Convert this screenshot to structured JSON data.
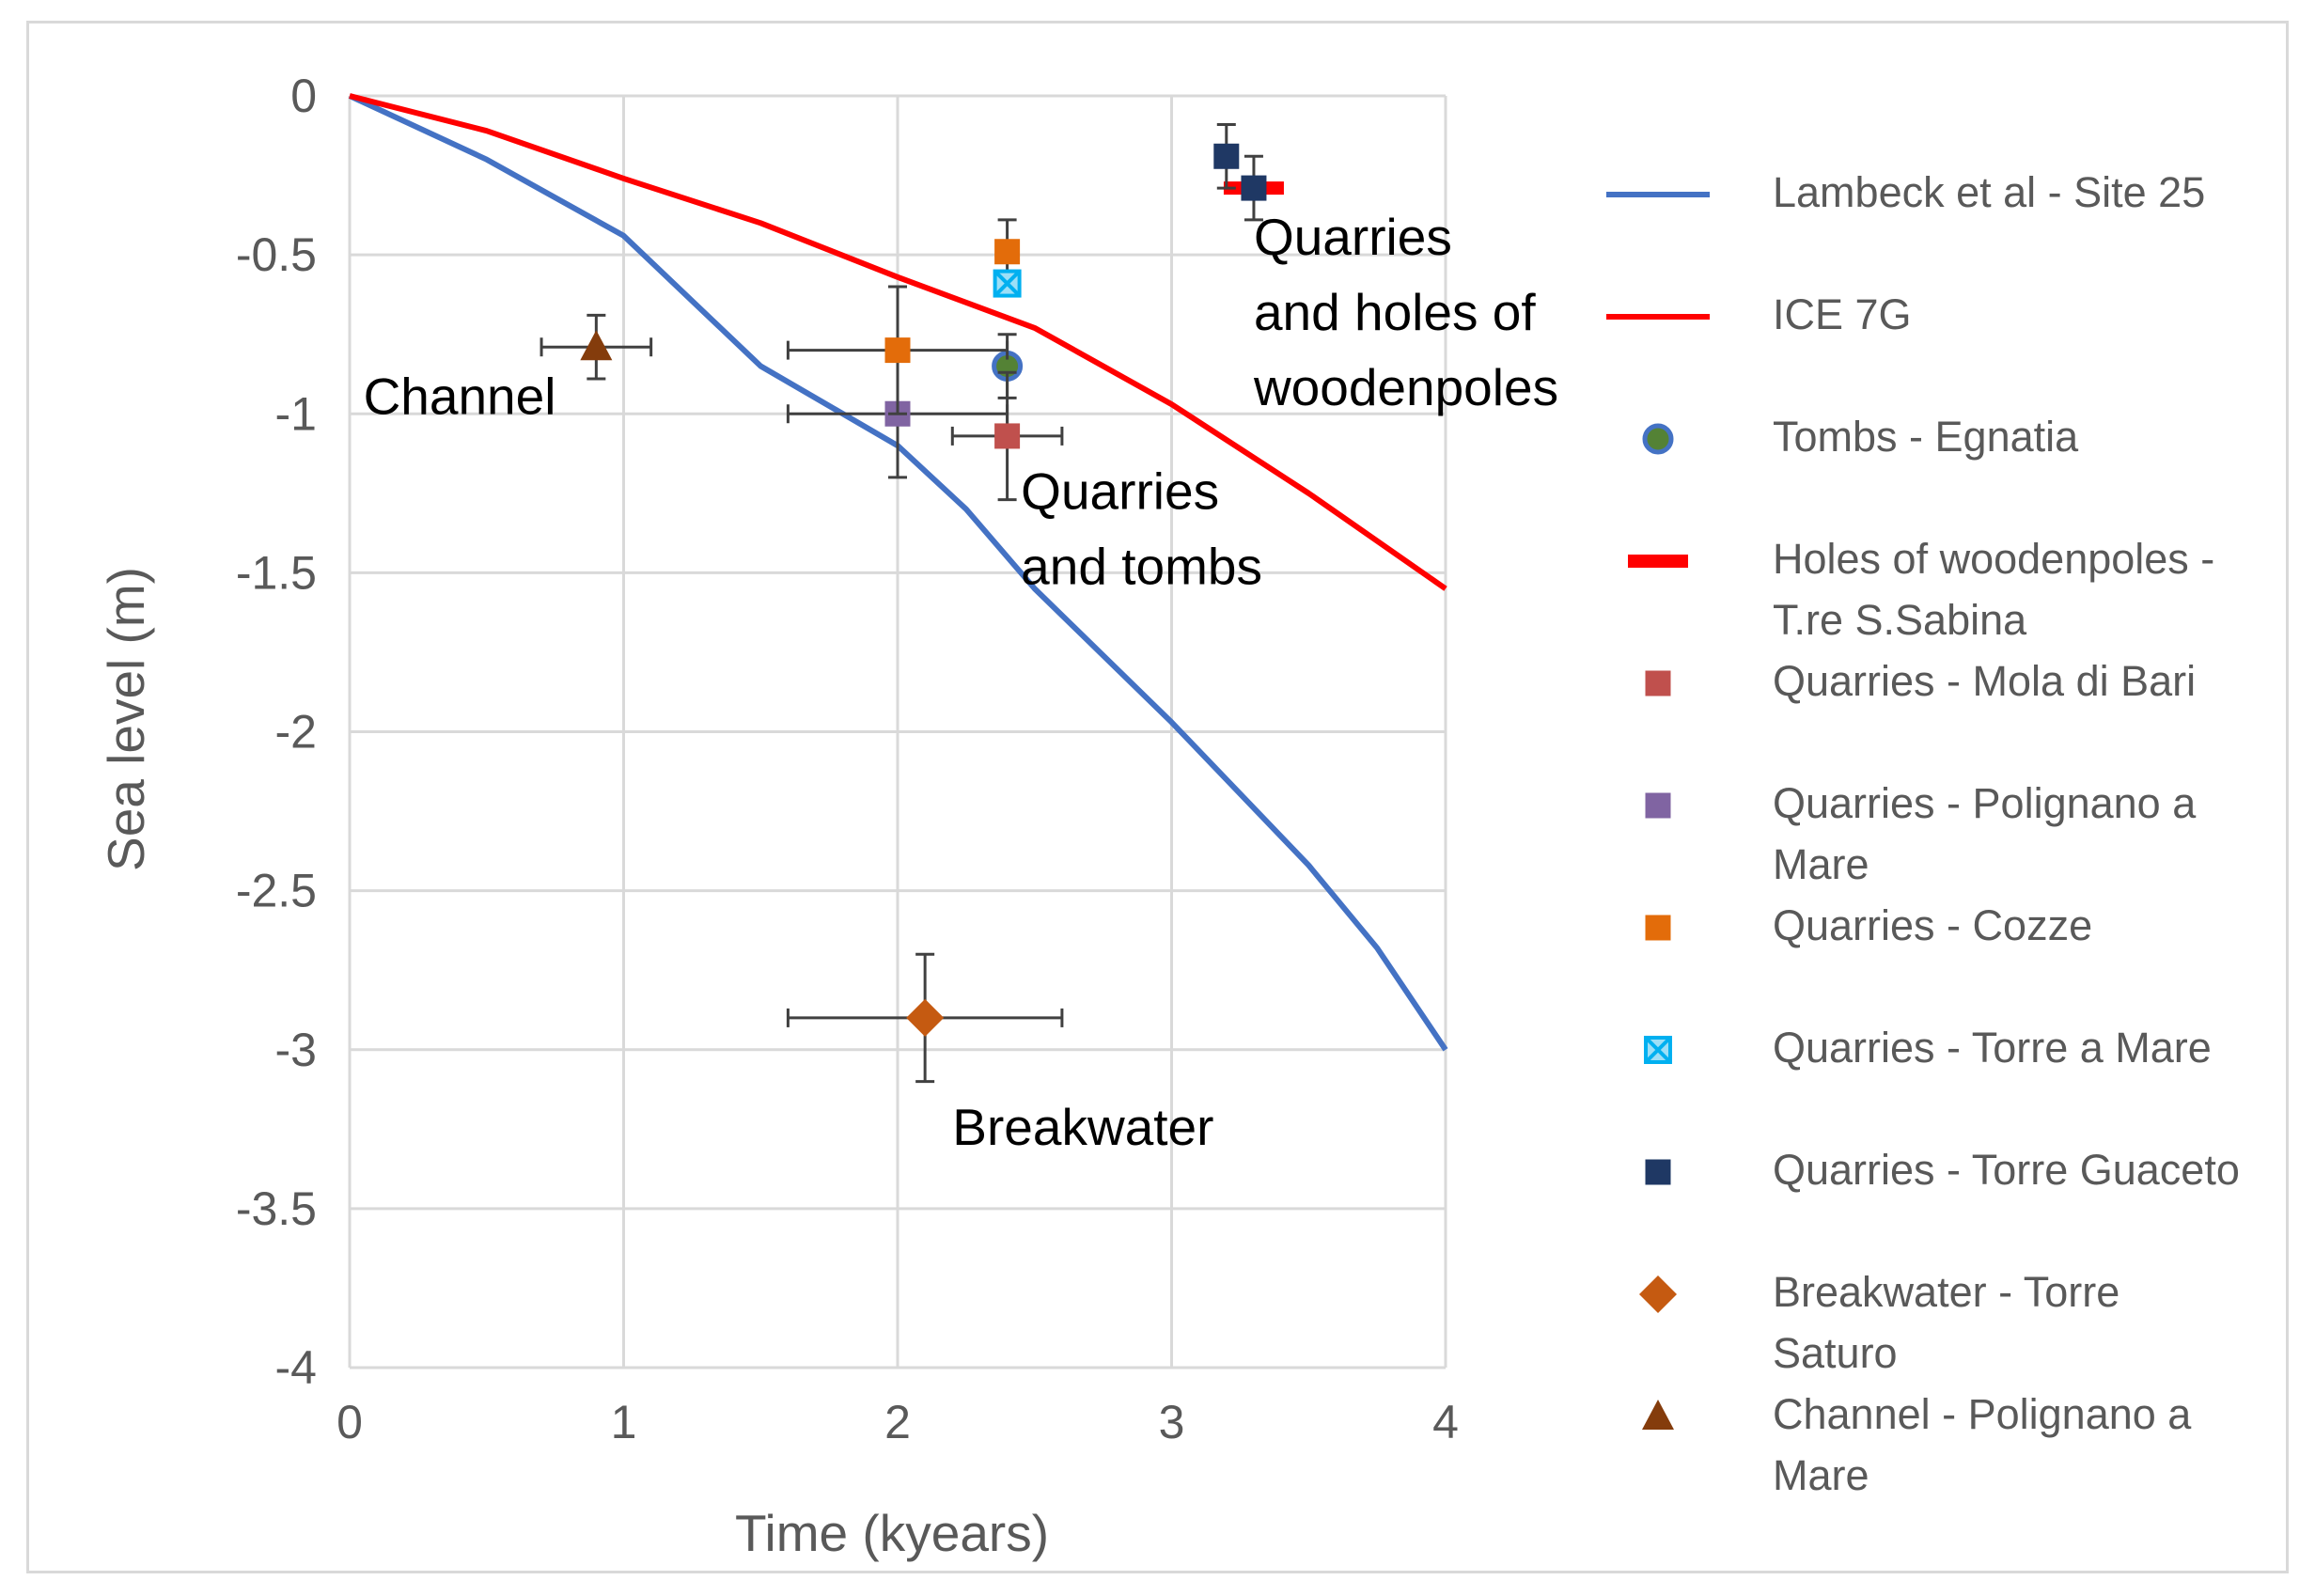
{
  "chart_data": {
    "type": "line+scatter",
    "xlabel": "Time (kyears)",
    "ylabel": "Sea level (m)",
    "xlim": [
      0,
      4
    ],
    "ylim": [
      -4,
      0
    ],
    "xticks": [
      {
        "value": 0,
        "label": "0"
      },
      {
        "value": 1,
        "label": "1"
      },
      {
        "value": 2,
        "label": "2"
      },
      {
        "value": 3,
        "label": "3"
      },
      {
        "value": 4,
        "label": "4"
      }
    ],
    "yticks": [
      {
        "value": 0,
        "label": "0"
      },
      {
        "value": -0.5,
        "label": "-0.5"
      },
      {
        "value": -1,
        "label": "-1"
      },
      {
        "value": -1.5,
        "label": "-1.5"
      },
      {
        "value": -2,
        "label": "-2"
      },
      {
        "value": -2.5,
        "label": "-2.5"
      },
      {
        "value": -3,
        "label": "-3"
      },
      {
        "value": -3.5,
        "label": "-3.5"
      },
      {
        "value": -4,
        "label": "-4"
      }
    ],
    "grid": true,
    "legend_position": "right",
    "lines": [
      {
        "name": "Lambeck et al - Site 25",
        "color": "#4472c4",
        "points": [
          [
            0,
            0
          ],
          [
            0.5,
            -0.2
          ],
          [
            1,
            -0.44
          ],
          [
            1.5,
            -0.85
          ],
          [
            2,
            -1.1
          ],
          [
            2.25,
            -1.3
          ],
          [
            2.5,
            -1.55
          ],
          [
            3,
            -1.97
          ],
          [
            3.5,
            -2.42
          ],
          [
            3.75,
            -2.68
          ],
          [
            4,
            -3.0
          ]
        ]
      },
      {
        "name": "ICE 7G",
        "color": "#ff0000",
        "points": [
          [
            0,
            0
          ],
          [
            0.5,
            -0.11
          ],
          [
            1,
            -0.26
          ],
          [
            1.5,
            -0.4
          ],
          [
            2,
            -0.57
          ],
          [
            2.5,
            -0.73
          ],
          [
            3,
            -0.97
          ],
          [
            3.5,
            -1.25
          ],
          [
            4,
            -1.55
          ]
        ]
      }
    ],
    "series": [
      {
        "name": "Tombs - Egnatia",
        "marker": "circle",
        "color": "#548235",
        "edge": "#4472c4",
        "points": [
          {
            "x": 2.4,
            "y": -0.85,
            "yerr": 0.1
          }
        ]
      },
      {
        "name": "Holes of woodenpoles - T.re S.Sabina",
        "marker": "dash",
        "color": "#ff0000",
        "points": [
          {
            "x": 3.3,
            "y": -0.29
          }
        ]
      },
      {
        "name": "Quarries - Mola di Bari",
        "marker": "square",
        "color": "#c0504d",
        "points": [
          {
            "x": 2.4,
            "y": -1.07,
            "xerr": 0.2,
            "yerr": 0.2
          }
        ]
      },
      {
        "name": "Quarries - Polignano a Mare",
        "marker": "square",
        "color": "#8064a2",
        "points": [
          {
            "x": 2.0,
            "y": -1.0,
            "xerr": 0.4,
            "yerr": 0.2
          }
        ]
      },
      {
        "name": "Quarries - Cozze",
        "marker": "square",
        "color": "#e36c0a",
        "points": [
          {
            "x": 2.0,
            "y": -0.8,
            "xerr": 0.4,
            "yerr": 0.2
          },
          {
            "x": 2.4,
            "y": -0.49,
            "yerr": 0.1
          }
        ]
      },
      {
        "name": "Quarries - Torre a Mare",
        "marker": "xsquare",
        "color": "#00b0f0",
        "points": [
          {
            "x": 2.4,
            "y": -0.59
          }
        ]
      },
      {
        "name": "Quarries - Torre Guaceto",
        "marker": "square",
        "color": "#1f3864",
        "points": [
          {
            "x": 3.2,
            "y": -0.19,
            "yerr": 0.1
          },
          {
            "x": 3.3,
            "y": -0.29,
            "yerr": 0.1
          }
        ]
      },
      {
        "name": "Breakwater - Torre Saturo",
        "marker": "diamond",
        "color": "#c55a11",
        "points": [
          {
            "x": 2.1,
            "y": -2.9,
            "xerr": 0.5,
            "yerr": 0.2
          }
        ]
      },
      {
        "name": "Channel - Polignano a Mare",
        "marker": "triangle",
        "color": "#843c0c",
        "points": [
          {
            "x": 0.9,
            "y": -0.79,
            "xerr": 0.2,
            "yerr": 0.1
          }
        ]
      }
    ],
    "annotations": [
      {
        "lines": [
          "Channel"
        ],
        "x": 0.05,
        "y": -1.0
      },
      {
        "lines": [
          "Quarries",
          "and tombs"
        ],
        "x": 2.45,
        "y": -1.3
      },
      {
        "lines": [
          "Quarries",
          "and holes of",
          "woodenpoles"
        ],
        "x": 3.3,
        "y": -0.5
      },
      {
        "lines": [
          "Breakwater"
        ],
        "x": 2.2,
        "y": -3.3
      }
    ],
    "legend": [
      {
        "marker": "line",
        "color": "#4472c4",
        "lines": [
          "Lambeck et al - Site 25"
        ]
      },
      {
        "marker": "line",
        "color": "#ff0000",
        "lines": [
          "ICE 7G"
        ]
      },
      {
        "marker": "circle",
        "color": "#548235",
        "edge": "#4472c4",
        "lines": [
          "Tombs - Egnatia"
        ]
      },
      {
        "marker": "dash",
        "color": "#ff0000",
        "lines": [
          "Holes of woodenpoles -",
          "T.re S.Sabina"
        ]
      },
      {
        "marker": "square",
        "color": "#c0504d",
        "lines": [
          "Quarries - Mola di Bari"
        ]
      },
      {
        "marker": "square",
        "color": "#8064a2",
        "lines": [
          "Quarries - Polignano a",
          "Mare"
        ]
      },
      {
        "marker": "square",
        "color": "#e36c0a",
        "lines": [
          "Quarries - Cozze"
        ]
      },
      {
        "marker": "xsquare",
        "color": "#00b0f0",
        "lines": [
          "Quarries - Torre a Mare"
        ]
      },
      {
        "marker": "square",
        "color": "#1f3864",
        "lines": [
          "Quarries - Torre Guaceto"
        ]
      },
      {
        "marker": "diamond",
        "color": "#c55a11",
        "lines": [
          "Breakwater - Torre",
          "Saturo"
        ]
      },
      {
        "marker": "triangle",
        "color": "#843c0c",
        "lines": [
          "Channel - Polignano a",
          "Mare"
        ]
      }
    ]
  }
}
